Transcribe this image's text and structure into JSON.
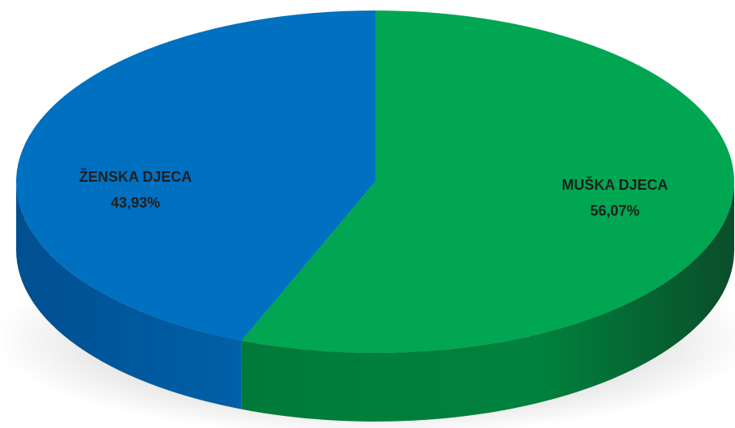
{
  "chart_data": {
    "type": "pie",
    "style": "3d",
    "slices": [
      {
        "label": "MUŠKA DJECA",
        "value": 56.07,
        "value_text": "56,07%",
        "color": "#00A651"
      },
      {
        "label": "ŽENSKA DJECA",
        "value": 43.93,
        "value_text": "43,93%",
        "color": "#0070C0"
      }
    ],
    "legend": "none"
  }
}
